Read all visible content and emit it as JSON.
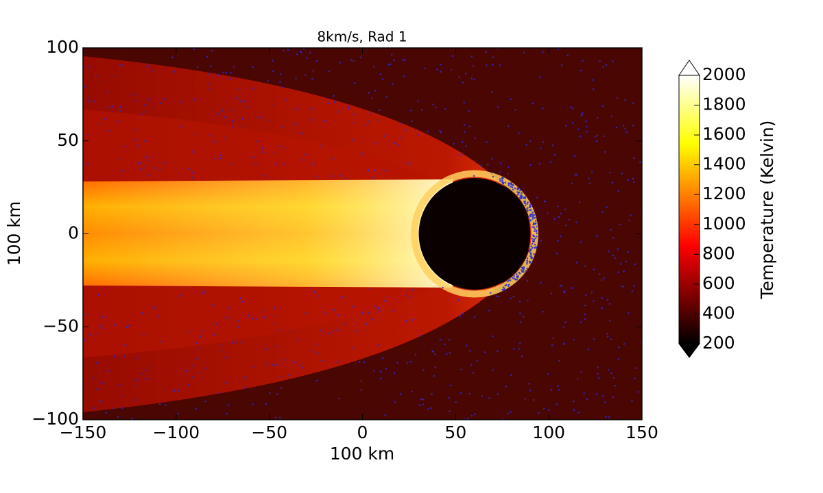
{
  "chart_data": {
    "type": "heatmap",
    "title": "8km/s, Rad 1",
    "x_label": "100 km",
    "y_label": "100 km",
    "xlim": [
      -150,
      150
    ],
    "ylim": [
      -100,
      100
    ],
    "xticks": [
      {
        "value": -150,
        "label": "−150"
      },
      {
        "value": -100,
        "label": "−100"
      },
      {
        "value": -50,
        "label": "−50"
      },
      0,
      50,
      100,
      150
    ],
    "yticks": [
      {
        "value": -100,
        "label": "−100"
      },
      {
        "value": -50,
        "label": "−50"
      },
      0,
      50,
      100
    ],
    "colorbar": {
      "label": "Temperature (Kelvin)",
      "clim": [
        200,
        2000
      ],
      "ticks": [
        200,
        400,
        600,
        800,
        1000,
        1200,
        1400,
        1600,
        1800,
        2000
      ]
    }
  }
}
